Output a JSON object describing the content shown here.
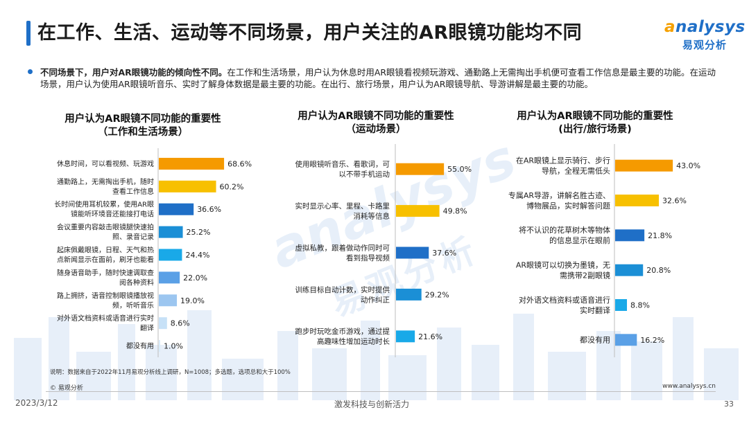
{
  "page": {
    "title": "在工作、生活、运动等不同场景，用户关注的AR眼镜功能均不同",
    "logo_en_a": "a",
    "logo_en_rest": "nalysys",
    "logo_cn": "易观分析",
    "summary_bold": "不同场景下，用户对AR眼镜功能的倾向性不同。",
    "summary_text": "在工作和生活场景，用户认为休息时用AR眼镜看视频玩游戏、通勤路上无需掏出手机便可查看工作信息是最主要的功能。在运动场景，用户认为使用AR眼镜听音乐、实时了解身体数据是最主要的功能。在出行、旅行场景，用户认为AR眼镜导航、导游讲解是最主要的功能。",
    "watermark": "analysys",
    "watermark_cn": "易观分析",
    "footnote": "说明：数据来自于2022年11月易观分析线上调研，N=1008；多选题，选项总和大于100%",
    "copyright": "© 易观分析",
    "website": "www.analysys.cn",
    "date": "2023/3/12",
    "slogan": "激发科技与创新活力",
    "page_number": "33"
  },
  "chart_data": [
    {
      "type": "bar",
      "orientation": "horizontal",
      "title": "用户认为AR眼镜不同功能的重要性",
      "subtitle": "（工作和生活场景）",
      "categories": [
        "休息时间，可以看视频、玩游戏",
        "通勤路上，无需掏出手机，随时查看工作信息",
        "长时间使用耳机较累，使用AR眼镜能听环境音还能接打电话",
        "会议重要内容敲击眼镜腿快速拍照、录音记录",
        "起床佩戴眼镜，日程、天气和热点新闻显示在面前，刷牙也能看",
        "随身语音助手，随时快速调取查阅各种资料",
        "路上拥挤，语音控制眼镜播放视频，听听音乐",
        "对外语文档资料或语音进行实时翻译",
        "都没有用"
      ],
      "label_lines": [
        [
          "休息时间，可以看视频、玩游戏"
        ],
        [
          "通勤路上，无需掏出手机，随时",
          "查看工作信息"
        ],
        [
          "长时间使用耳机较累，使用AR眼",
          "镜能听环境音还能接打电话"
        ],
        [
          "会议重要内容敲击眼镜腿快速拍",
          "照、录音记录"
        ],
        [
          "起床佩戴眼镜，日程、天气和热",
          "点新闻显示在面前，刷牙也能看"
        ],
        [
          "随身语音助手，随时快速调取查",
          "阅各种资料"
        ],
        [
          "路上拥挤，语音控制眼镜播放视",
          "频，听听音乐"
        ],
        [
          "对外语文档资料或语音进行实时",
          "翻译"
        ],
        [
          "都没有用"
        ]
      ],
      "values": [
        68.6,
        60.2,
        36.6,
        25.2,
        24.4,
        22.0,
        19.0,
        8.6,
        1.0
      ],
      "value_labels": [
        "68.6%",
        "60.2%",
        "36.6%",
        "25.2%",
        "24.4%",
        "22.0%",
        "19.0%",
        "8.6%",
        "1.0%"
      ],
      "colors": [
        "#f59a00",
        "#f7c000",
        "#1f6fc7",
        "#1b8fd6",
        "#19a9e8",
        "#5aa0e6",
        "#9cc6f0",
        "#c7e1f7",
        "#d9ecfb"
      ],
      "xlim": [
        0,
        70
      ]
    },
    {
      "type": "bar",
      "orientation": "horizontal",
      "title": "用户认为AR眼镜不同功能的重要性",
      "subtitle": "（运动场景）",
      "categories": [
        "使用眼镜听音乐、看歌词，可以不带手机运动",
        "实时显示心率、里程、卡路里消耗等信息",
        "虚拟私教，跟着做动作同时可看到指导视频",
        "训练目标自动计数，实时提供动作纠正",
        "跑步时玩吃金币游戏，通过提高趣味性增加运动时长"
      ],
      "label_lines": [
        [
          "使用眼镜听音乐、看歌词，可",
          "以不带手机运动"
        ],
        [
          "实时显示心率、里程、卡路里",
          "消耗等信息"
        ],
        [
          "虚拟私教，跟着做动作同时可",
          "看到指导视频"
        ],
        [
          "训练目标自动计数，实时提供",
          "动作纠正"
        ],
        [
          "跑步时玩吃金币游戏，通过提",
          "高趣味性增加运动时长"
        ]
      ],
      "values": [
        55.0,
        49.8,
        37.6,
        29.2,
        21.6
      ],
      "value_labels": [
        "55.0%",
        "49.8%",
        "37.6%",
        "29.2%",
        "21.6%"
      ],
      "colors": [
        "#f59a00",
        "#f7c000",
        "#1f6fc7",
        "#1b8fd6",
        "#19a9e8"
      ],
      "xlim": [
        0,
        70
      ]
    },
    {
      "type": "bar",
      "orientation": "horizontal",
      "title": "用户认为AR眼镜不同功能的重要性",
      "subtitle": "(出行/旅行场景)",
      "categories": [
        "在AR眼镜上显示骑行、步行导航，全程无需低头",
        "专属AR导游，讲解名胜古迹、博物展品，实时解答问题",
        "将不认识的花草树木等物体的信息显示在眼前",
        "AR眼镜可以切换为墨镜，无需携带2副眼镜",
        "对外语文档资料或语音进行实时翻译",
        "都没有用"
      ],
      "label_lines": [
        [
          "在AR眼镜上显示骑行、步行",
          "导航，全程无需低头"
        ],
        [
          "专属AR导游，讲解名胜古迹、",
          "博物展品，实时解答问题"
        ],
        [
          "将不认识的花草树木等物体",
          "的信息显示在眼前"
        ],
        [
          "AR眼镜可以切换为墨镜，无",
          "需携带2副眼镜"
        ],
        [
          "对外语文档资料或语音进行",
          "实时翻译"
        ],
        [
          "都没有用"
        ]
      ],
      "values": [
        43.0,
        32.6,
        21.8,
        20.8,
        8.8,
        16.2
      ],
      "value_labels": [
        "43.0%",
        "32.6%",
        "21.8%",
        "20.8%",
        "8.8%",
        "16.2%"
      ],
      "colors": [
        "#f59a00",
        "#f7c000",
        "#1f6fc7",
        "#1b8fd6",
        "#19a9e8",
        "#5aa0e6"
      ],
      "xlim": [
        0,
        60
      ]
    }
  ]
}
